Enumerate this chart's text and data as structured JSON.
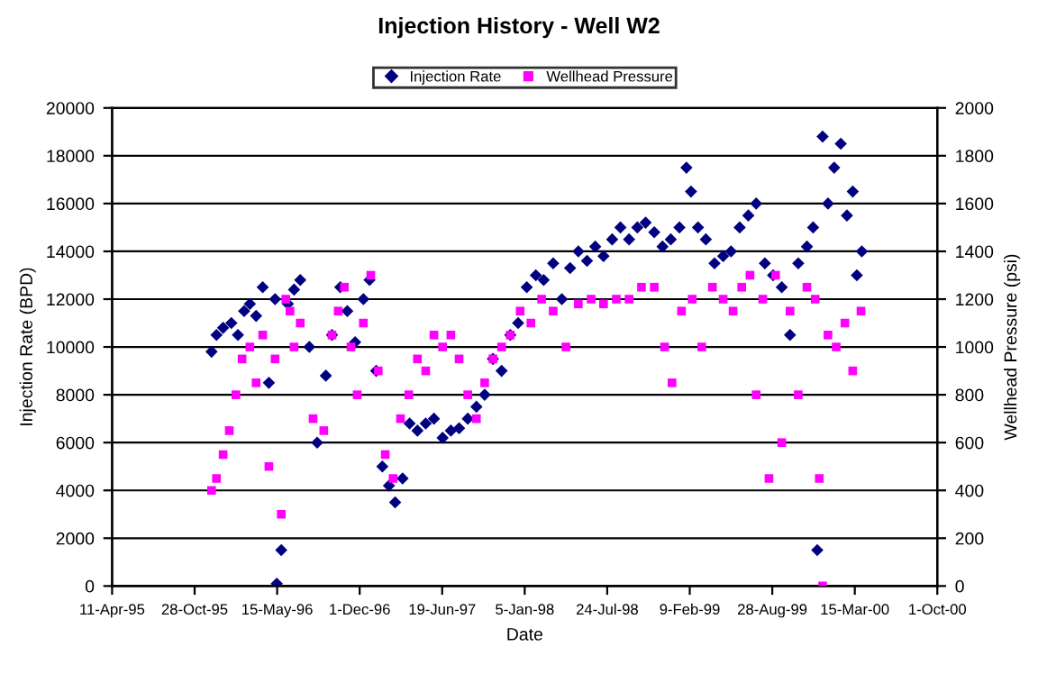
{
  "chart_data": {
    "type": "scatter",
    "title": "Injection History - Well W2",
    "xlabel": "Date",
    "ylabel": "Injection Rate (BPD)",
    "y2label": "Wellhead Pressure (psi)",
    "legend": "top",
    "grid": "y",
    "xlim": [
      "1995-04-11",
      "2000-10-01"
    ],
    "xticks": [
      {
        "value": "1995-04-11",
        "label": "11-Apr-95"
      },
      {
        "value": "1995-10-28",
        "label": "28-Oct-95"
      },
      {
        "value": "1996-05-15",
        "label": "15-May-96"
      },
      {
        "value": "1996-12-01",
        "label": "1-Dec-96"
      },
      {
        "value": "1997-06-19",
        "label": "19-Jun-97"
      },
      {
        "value": "1998-01-05",
        "label": "5-Jan-98"
      },
      {
        "value": "1998-07-24",
        "label": "24-Jul-98"
      },
      {
        "value": "1999-02-09",
        "label": "9-Feb-99"
      },
      {
        "value": "1999-08-28",
        "label": "28-Aug-99"
      },
      {
        "value": "2000-03-15",
        "label": "15-Mar-00"
      },
      {
        "value": "2000-10-01",
        "label": "1-Oct-00"
      }
    ],
    "ylim": [
      0,
      20000
    ],
    "yticks": [
      0,
      2000,
      4000,
      6000,
      8000,
      10000,
      12000,
      14000,
      16000,
      18000,
      20000
    ],
    "y2lim": [
      0,
      2000
    ],
    "y2ticks": [
      0,
      200,
      400,
      600,
      800,
      1000,
      1200,
      1400,
      1600,
      1800,
      2000
    ],
    "series": [
      {
        "name": "Injection Rate",
        "color": "#000080",
        "marker": "diamond",
        "x": [
          "1995-12-08",
          "1995-12-20",
          "1996-01-05",
          "1996-01-25",
          "1996-02-10",
          "1996-02-25",
          "1996-03-10",
          "1996-03-25",
          "1996-04-10",
          "1996-04-25",
          "1996-05-10",
          "1996-05-14",
          "1996-05-25",
          "1996-06-10",
          "1996-06-25",
          "1996-07-10",
          "1996-08-01",
          "1996-08-20",
          "1996-09-10",
          "1996-09-25",
          "1996-10-15",
          "1996-11-01",
          "1996-11-20",
          "1996-12-10",
          "1996-12-25",
          "1997-01-10",
          "1997-01-25",
          "1997-02-10",
          "1997-02-25",
          "1997-03-15",
          "1997-04-01",
          "1997-04-20",
          "1997-05-10",
          "1997-05-30",
          "1997-06-20",
          "1997-07-10",
          "1997-07-30",
          "1997-08-20",
          "1997-09-10",
          "1997-09-30",
          "1997-10-20",
          "1997-11-10",
          "1997-12-01",
          "1997-12-20",
          "1998-01-10",
          "1998-02-01",
          "1998-02-20",
          "1998-03-15",
          "1998-04-05",
          "1998-04-25",
          "1998-05-15",
          "1998-06-05",
          "1998-06-25",
          "1998-07-15",
          "1998-08-05",
          "1998-08-25",
          "1998-09-15",
          "1998-10-05",
          "1998-10-25",
          "1998-11-15",
          "1998-12-05",
          "1998-12-25",
          "1999-01-15",
          "1999-02-01",
          "1999-02-12",
          "1999-03-01",
          "1999-03-20",
          "1999-04-10",
          "1999-05-01",
          "1999-05-20",
          "1999-06-10",
          "1999-07-01",
          "1999-07-20",
          "1999-08-10",
          "1999-08-30",
          "1999-09-20",
          "1999-10-10",
          "1999-10-30",
          "1999-11-20",
          "1999-12-05",
          "1999-12-15",
          "1999-12-28",
          "2000-01-10",
          "2000-01-25",
          "2000-02-10",
          "2000-02-25",
          "2000-03-10",
          "2000-03-20",
          "2000-04-01"
        ],
        "values": [
          9800,
          10500,
          10800,
          11000,
          10500,
          11500,
          11800,
          11300,
          12500,
          8500,
          12000,
          100,
          1500,
          11800,
          12400,
          12800,
          10000,
          6000,
          8800,
          10500,
          12500,
          11500,
          10200,
          12000,
          12800,
          9000,
          5000,
          4200,
          3500,
          4500,
          6800,
          6500,
          6800,
          7000,
          6200,
          6500,
          6600,
          7000,
          7500,
          8000,
          9500,
          9000,
          10500,
          11000,
          12500,
          13000,
          12800,
          13500,
          12000,
          13300,
          14000,
          13600,
          14200,
          13800,
          14500,
          15000,
          14500,
          15000,
          15200,
          14800,
          14200,
          14500,
          15000,
          17500,
          16500,
          15000,
          14500,
          13500,
          13800,
          14000,
          15000,
          15500,
          16000,
          13500,
          13000,
          12500,
          10500,
          13500,
          14200,
          15000,
          1500,
          18800,
          16000,
          17500,
          18500,
          15500,
          16500,
          13000,
          14000
        ]
      },
      {
        "name": "Wellhead Pressure",
        "color": "#ff00ff",
        "marker": "square",
        "axis": "y2",
        "x": [
          "1995-12-08",
          "1995-12-20",
          "1996-01-05",
          "1996-01-20",
          "1996-02-05",
          "1996-02-20",
          "1996-03-10",
          "1996-03-25",
          "1996-04-10",
          "1996-04-25",
          "1996-05-10",
          "1996-05-25",
          "1996-06-05",
          "1996-06-15",
          "1996-06-25",
          "1996-07-10",
          "1996-08-10",
          "1996-09-05",
          "1996-09-25",
          "1996-10-10",
          "1996-10-25",
          "1996-11-10",
          "1996-11-25",
          "1996-12-10",
          "1996-12-28",
          "1997-01-15",
          "1997-02-01",
          "1997-02-20",
          "1997-03-10",
          "1997-03-30",
          "1997-04-20",
          "1997-05-10",
          "1997-05-30",
          "1997-06-20",
          "1997-07-10",
          "1997-07-30",
          "1997-08-20",
          "1997-09-10",
          "1997-09-30",
          "1997-10-20",
          "1997-11-10",
          "1997-12-01",
          "1997-12-25",
          "1998-01-20",
          "1998-02-15",
          "1998-03-15",
          "1998-04-15",
          "1998-05-15",
          "1998-06-15",
          "1998-07-15",
          "1998-08-15",
          "1998-09-15",
          "1998-10-15",
          "1998-11-15",
          "1998-12-10",
          "1998-12-28",
          "1999-01-20",
          "1999-02-15",
          "1999-03-10",
          "1999-04-05",
          "1999-05-01",
          "1999-05-25",
          "1999-06-15",
          "1999-07-05",
          "1999-07-20",
          "1999-08-05",
          "1999-08-20",
          "1999-09-05",
          "1999-09-20",
          "1999-10-10",
          "1999-10-30",
          "1999-11-20",
          "1999-12-10",
          "1999-12-20",
          "1999-12-28",
          "2000-01-10",
          "2000-01-30",
          "2000-02-20",
          "2000-03-10",
          "2000-03-30"
        ],
        "values": [
          400,
          450,
          550,
          650,
          800,
          950,
          1000,
          850,
          1050,
          500,
          950,
          300,
          1200,
          1150,
          1000,
          1100,
          700,
          650,
          1050,
          1150,
          1250,
          1000,
          800,
          1100,
          1300,
          900,
          550,
          450,
          700,
          800,
          950,
          900,
          1050,
          1000,
          1050,
          950,
          800,
          700,
          850,
          950,
          1000,
          1050,
          1150,
          1100,
          1200,
          1150,
          1000,
          1180,
          1200,
          1180,
          1200,
          1200,
          1250,
          1250,
          1000,
          850,
          1150,
          1200,
          1000,
          1250,
          1200,
          1150,
          1250,
          1300,
          800,
          1200,
          450,
          1300,
          600,
          1150,
          800,
          1250,
          1200,
          450,
          0,
          1050,
          1000,
          1100,
          900,
          1150
        ]
      }
    ]
  }
}
